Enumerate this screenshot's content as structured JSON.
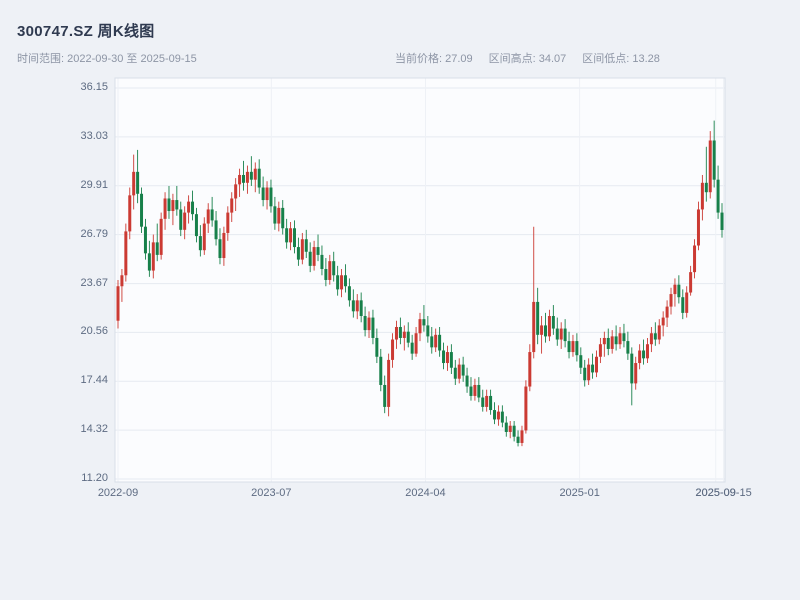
{
  "header": {
    "title": "300747.SZ 周K线图",
    "time_range_label": "时间范围: 2022-09-30 至 2025-09-15",
    "stats": [
      {
        "name": "current-price",
        "label": "当前价格",
        "value": "27.09"
      },
      {
        "name": "range-high",
        "label": "区间高点",
        "value": "34.07"
      },
      {
        "name": "range-low",
        "label": "区间低点",
        "value": "13.28"
      }
    ]
  },
  "chart_data": {
    "type": "candlestick",
    "title": "300747.SZ 周K线图",
    "interval": "weekly",
    "start_date": "2022-09-30",
    "end_date": "2025-09-15",
    "current_price": 27.09,
    "range_high": 34.07,
    "range_low": 13.28,
    "up_color": "#cb3a33",
    "down_color": "#17804a",
    "grid": true,
    "ylim": [
      11.2,
      36.15
    ],
    "y_ticks": [
      {
        "label": "36.15",
        "value": 36.15
      },
      {
        "label": "33.03",
        "value": 33.03
      },
      {
        "label": "29.91",
        "value": 29.91
      },
      {
        "label": "26.79",
        "value": 26.79
      },
      {
        "label": "23.67",
        "value": 23.67
      },
      {
        "label": "20.56",
        "value": 20.56
      },
      {
        "label": "17.44",
        "value": 17.44
      },
      {
        "label": "14.32",
        "value": 14.32
      },
      {
        "label": "11.20",
        "value": 11.2
      }
    ],
    "x_ticks": [
      {
        "label": "2022-09",
        "week": 0
      },
      {
        "label": "2023-07",
        "week": 39.1
      },
      {
        "label": "2024-04",
        "week": 78.4
      },
      {
        "label": "2025-01",
        "week": 117.7
      },
      {
        "label": "2025-09",
        "week": 152.4
      },
      {
        "label": "2025-09-15",
        "week": 154.4
      }
    ],
    "candles": [
      [
        21.3,
        23.9,
        20.8,
        23.5
      ],
      [
        23.5,
        24.6,
        22.5,
        24.2
      ],
      [
        24.2,
        27.5,
        23.8,
        27.0
      ],
      [
        27.0,
        29.8,
        26.5,
        29.3
      ],
      [
        29.3,
        31.9,
        28.4,
        30.8
      ],
      [
        30.8,
        32.2,
        28.8,
        29.4
      ],
      [
        29.4,
        29.8,
        26.9,
        27.3
      ],
      [
        27.3,
        27.8,
        25.2,
        25.6
      ],
      [
        25.6,
        26.4,
        24.1,
        24.5
      ],
      [
        24.5,
        26.8,
        24.0,
        26.3
      ],
      [
        26.3,
        27.5,
        25.1,
        25.5
      ],
      [
        25.5,
        28.2,
        25.2,
        27.8
      ],
      [
        27.8,
        29.5,
        27.1,
        29.1
      ],
      [
        29.1,
        29.9,
        27.8,
        28.3
      ],
      [
        28.3,
        29.4,
        27.4,
        29.0
      ],
      [
        29.0,
        29.9,
        28.0,
        28.4
      ],
      [
        28.4,
        28.9,
        26.7,
        27.1
      ],
      [
        27.1,
        28.6,
        26.5,
        28.2
      ],
      [
        28.2,
        29.3,
        27.5,
        28.9
      ],
      [
        28.9,
        29.6,
        27.7,
        28.1
      ],
      [
        28.1,
        28.5,
        26.3,
        26.7
      ],
      [
        26.7,
        27.4,
        25.4,
        25.8
      ],
      [
        25.8,
        27.9,
        25.5,
        27.5
      ],
      [
        27.5,
        28.8,
        26.9,
        28.4
      ],
      [
        28.4,
        29.2,
        27.3,
        27.7
      ],
      [
        27.7,
        28.3,
        26.1,
        26.5
      ],
      [
        26.5,
        27.2,
        24.9,
        25.3
      ],
      [
        25.3,
        27.3,
        24.8,
        26.9
      ],
      [
        26.9,
        28.6,
        26.4,
        28.2
      ],
      [
        28.2,
        29.5,
        27.6,
        29.1
      ],
      [
        29.1,
        30.4,
        28.3,
        30.0
      ],
      [
        30.0,
        31.0,
        29.2,
        30.6
      ],
      [
        30.6,
        31.5,
        29.6,
        30.1
      ],
      [
        30.1,
        31.2,
        29.4,
        30.8
      ],
      [
        30.8,
        31.8,
        29.9,
        30.3
      ],
      [
        30.3,
        31.4,
        29.5,
        31.0
      ],
      [
        31.0,
        31.6,
        29.4,
        29.8
      ],
      [
        29.8,
        30.5,
        28.6,
        29.0
      ],
      [
        29.0,
        30.2,
        28.4,
        29.8
      ],
      [
        29.8,
        30.3,
        28.2,
        28.6
      ],
      [
        28.6,
        29.2,
        27.1,
        27.5
      ],
      [
        27.5,
        28.9,
        27.0,
        28.5
      ],
      [
        28.5,
        29.0,
        26.8,
        27.2
      ],
      [
        27.2,
        27.8,
        25.9,
        26.3
      ],
      [
        26.3,
        27.6,
        25.8,
        27.2
      ],
      [
        27.2,
        27.7,
        25.6,
        26.0
      ],
      [
        26.0,
        26.6,
        24.8,
        25.2
      ],
      [
        25.2,
        26.9,
        24.9,
        26.5
      ],
      [
        26.5,
        27.1,
        25.3,
        25.7
      ],
      [
        25.7,
        26.3,
        24.4,
        24.8
      ],
      [
        24.8,
        26.4,
        24.5,
        26.0
      ],
      [
        26.0,
        26.8,
        25.1,
        25.5
      ],
      [
        25.5,
        26.1,
        24.2,
        24.6
      ],
      [
        24.6,
        25.3,
        23.5,
        23.9
      ],
      [
        23.9,
        25.5,
        23.6,
        25.1
      ],
      [
        25.1,
        25.7,
        23.8,
        24.2
      ],
      [
        24.2,
        24.8,
        22.9,
        23.3
      ],
      [
        23.3,
        24.6,
        22.8,
        24.2
      ],
      [
        24.2,
        24.9,
        23.1,
        23.5
      ],
      [
        23.5,
        24.0,
        22.2,
        22.6
      ],
      [
        22.6,
        23.3,
        21.5,
        21.9
      ],
      [
        21.9,
        23.0,
        21.4,
        22.6
      ],
      [
        22.6,
        23.1,
        21.2,
        21.6
      ],
      [
        21.6,
        22.2,
        20.3,
        20.7
      ],
      [
        20.7,
        21.9,
        20.2,
        21.5
      ],
      [
        21.5,
        22.0,
        19.8,
        20.2
      ],
      [
        20.2,
        20.8,
        18.6,
        19.0
      ],
      [
        19.0,
        19.5,
        16.8,
        17.2
      ],
      [
        17.2,
        17.8,
        15.4,
        15.8
      ],
      [
        15.8,
        19.2,
        15.2,
        18.8
      ],
      [
        18.8,
        20.5,
        18.3,
        20.1
      ],
      [
        20.1,
        21.3,
        19.5,
        20.9
      ],
      [
        20.9,
        21.5,
        19.8,
        20.2
      ],
      [
        20.2,
        21.0,
        19.4,
        20.6
      ],
      [
        20.6,
        21.2,
        19.6,
        19.9
      ],
      [
        19.9,
        20.4,
        18.8,
        19.2
      ],
      [
        19.2,
        20.9,
        19.0,
        20.5
      ],
      [
        20.5,
        21.8,
        20.0,
        21.4
      ],
      [
        21.4,
        22.3,
        20.6,
        21.0
      ],
      [
        21.0,
        21.6,
        19.9,
        20.3
      ],
      [
        20.3,
        20.9,
        19.2,
        19.6
      ],
      [
        19.6,
        20.8,
        19.3,
        20.4
      ],
      [
        20.4,
        20.9,
        19.0,
        19.4
      ],
      [
        19.4,
        19.9,
        18.2,
        18.6
      ],
      [
        18.6,
        19.7,
        18.1,
        19.3
      ],
      [
        19.3,
        19.8,
        17.9,
        18.3
      ],
      [
        18.3,
        18.8,
        17.2,
        17.6
      ],
      [
        17.6,
        18.9,
        17.3,
        18.5
      ],
      [
        18.5,
        19.0,
        17.4,
        17.8
      ],
      [
        17.8,
        18.3,
        16.7,
        17.1
      ],
      [
        17.1,
        17.7,
        16.2,
        16.5
      ],
      [
        16.5,
        17.6,
        16.2,
        17.2
      ],
      [
        17.2,
        17.7,
        16.1,
        16.4
      ],
      [
        16.4,
        16.9,
        15.5,
        15.8
      ],
      [
        15.8,
        16.9,
        15.5,
        16.5
      ],
      [
        16.5,
        16.9,
        15.3,
        15.6
      ],
      [
        15.6,
        16.1,
        14.7,
        15.0
      ],
      [
        15.0,
        15.9,
        14.6,
        15.5
      ],
      [
        15.5,
        15.9,
        14.5,
        14.8
      ],
      [
        14.8,
        15.2,
        13.9,
        14.2
      ],
      [
        14.2,
        14.9,
        13.8,
        14.6
      ],
      [
        14.6,
        14.9,
        13.6,
        13.9
      ],
      [
        13.9,
        14.3,
        13.28,
        13.5
      ],
      [
        13.5,
        14.6,
        13.3,
        14.3
      ],
      [
        14.3,
        17.5,
        14.1,
        17.1
      ],
      [
        17.1,
        19.8,
        16.8,
        19.3
      ],
      [
        19.3,
        27.3,
        18.9,
        22.5
      ],
      [
        22.5,
        23.4,
        19.8,
        20.4
      ],
      [
        20.4,
        21.6,
        19.2,
        21.0
      ],
      [
        21.0,
        21.8,
        19.9,
        20.3
      ],
      [
        20.3,
        22.0,
        20.0,
        21.6
      ],
      [
        21.6,
        22.3,
        20.4,
        20.8
      ],
      [
        20.8,
        21.5,
        19.7,
        20.1
      ],
      [
        20.1,
        21.2,
        19.5,
        20.8
      ],
      [
        20.8,
        21.4,
        19.6,
        20.0
      ],
      [
        20.0,
        20.6,
        18.9,
        19.3
      ],
      [
        19.3,
        20.4,
        19.0,
        20.0
      ],
      [
        20.0,
        20.5,
        18.7,
        19.1
      ],
      [
        19.1,
        19.6,
        17.9,
        18.3
      ],
      [
        18.3,
        18.8,
        17.1,
        17.5
      ],
      [
        17.5,
        18.9,
        17.2,
        18.5
      ],
      [
        18.5,
        19.2,
        17.6,
        18.0
      ],
      [
        18.0,
        19.4,
        17.7,
        19.0
      ],
      [
        19.0,
        20.2,
        18.6,
        19.8
      ],
      [
        19.8,
        20.6,
        19.0,
        20.2
      ],
      [
        20.2,
        20.8,
        19.1,
        19.5
      ],
      [
        19.5,
        20.7,
        19.2,
        20.3
      ],
      [
        20.3,
        21.0,
        19.4,
        19.8
      ],
      [
        19.8,
        20.9,
        19.5,
        20.5
      ],
      [
        20.5,
        21.1,
        19.6,
        20.0
      ],
      [
        20.0,
        20.6,
        18.8,
        19.2
      ],
      [
        19.2,
        19.6,
        15.9,
        17.3
      ],
      [
        17.3,
        19.0,
        16.9,
        18.6
      ],
      [
        18.6,
        19.8,
        18.2,
        19.4
      ],
      [
        19.4,
        20.1,
        18.5,
        18.9
      ],
      [
        18.9,
        20.2,
        18.6,
        19.8
      ],
      [
        19.8,
        20.9,
        19.3,
        20.5
      ],
      [
        20.5,
        21.2,
        19.7,
        20.1
      ],
      [
        20.1,
        21.4,
        19.8,
        21.0
      ],
      [
        21.0,
        21.9,
        20.3,
        21.5
      ],
      [
        21.5,
        22.6,
        20.9,
        22.2
      ],
      [
        22.2,
        23.4,
        21.7,
        23.0
      ],
      [
        23.0,
        24.0,
        22.2,
        23.6
      ],
      [
        23.6,
        24.2,
        22.4,
        22.8
      ],
      [
        22.8,
        23.3,
        21.4,
        21.8
      ],
      [
        21.8,
        23.5,
        21.5,
        23.1
      ],
      [
        23.1,
        24.8,
        22.9,
        24.4
      ],
      [
        24.4,
        26.5,
        24.0,
        26.1
      ],
      [
        26.1,
        28.9,
        25.8,
        28.4
      ],
      [
        28.4,
        30.6,
        27.7,
        30.1
      ],
      [
        30.1,
        32.4,
        28.9,
        29.5
      ],
      [
        29.5,
        33.4,
        29.1,
        32.8
      ],
      [
        32.8,
        34.07,
        29.8,
        30.3
      ],
      [
        30.3,
        31.2,
        27.8,
        28.2
      ],
      [
        28.2,
        28.8,
        26.6,
        27.09
      ]
    ]
  }
}
